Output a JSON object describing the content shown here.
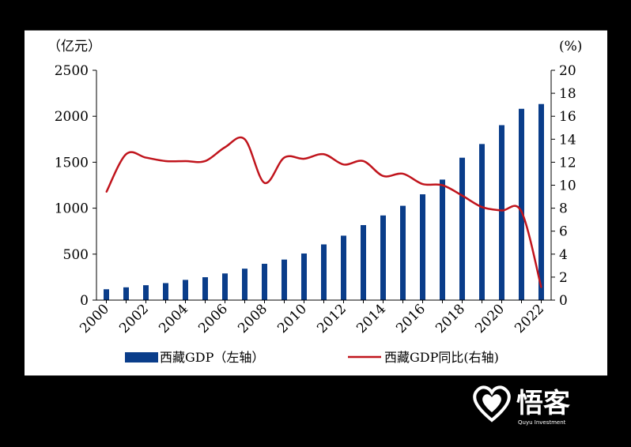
{
  "chart_data": {
    "type": "bar+line",
    "categories": [
      "2000",
      "2001",
      "2002",
      "2003",
      "2004",
      "2005",
      "2006",
      "2007",
      "2008",
      "2009",
      "2010",
      "2011",
      "2012",
      "2013",
      "2014",
      "2015",
      "2016",
      "2017",
      "2018",
      "2019",
      "2020",
      "2021",
      "2022"
    ],
    "x_tick_labels": [
      "2000",
      "2002",
      "2004",
      "2006",
      "2008",
      "2010",
      "2012",
      "2014",
      "2016",
      "2018",
      "2020",
      "2022"
    ],
    "series": [
      {
        "name": "西藏GDP（左轴）",
        "type": "bar",
        "axis": "left",
        "color": "#0a3d8a",
        "values": [
          118,
          139,
          162,
          185,
          220,
          249,
          290,
          342,
          395,
          441,
          507,
          606,
          701,
          816,
          921,
          1026,
          1151,
          1311,
          1549,
          1698,
          1903,
          2081,
          2133
        ]
      },
      {
        "name": "西藏GDP同比(右轴)",
        "type": "line",
        "axis": "right",
        "color": "#c0141c",
        "values": [
          9.4,
          12.7,
          12.4,
          12.1,
          12.1,
          12.1,
          13.3,
          14.0,
          10.2,
          12.4,
          12.3,
          12.7,
          11.8,
          12.1,
          10.8,
          11.0,
          10.1,
          10.0,
          9.1,
          8.1,
          7.8,
          7.7,
          1.1
        ]
      }
    ],
    "y_left": {
      "unit_label": "（亿元）",
      "min": 0,
      "max": 2500,
      "ticks": [
        0,
        500,
        1000,
        1500,
        2000,
        2500
      ]
    },
    "y_right": {
      "unit_label": "(%)",
      "min": 0,
      "max": 20,
      "ticks": [
        0,
        2,
        4,
        6,
        8,
        10,
        12,
        14,
        16,
        18,
        20
      ]
    },
    "grid": false,
    "legend_position": "bottom"
  },
  "watermark": {
    "text": "悟客",
    "subtext": "Quyu Investment",
    "icon": "heart-icon"
  }
}
